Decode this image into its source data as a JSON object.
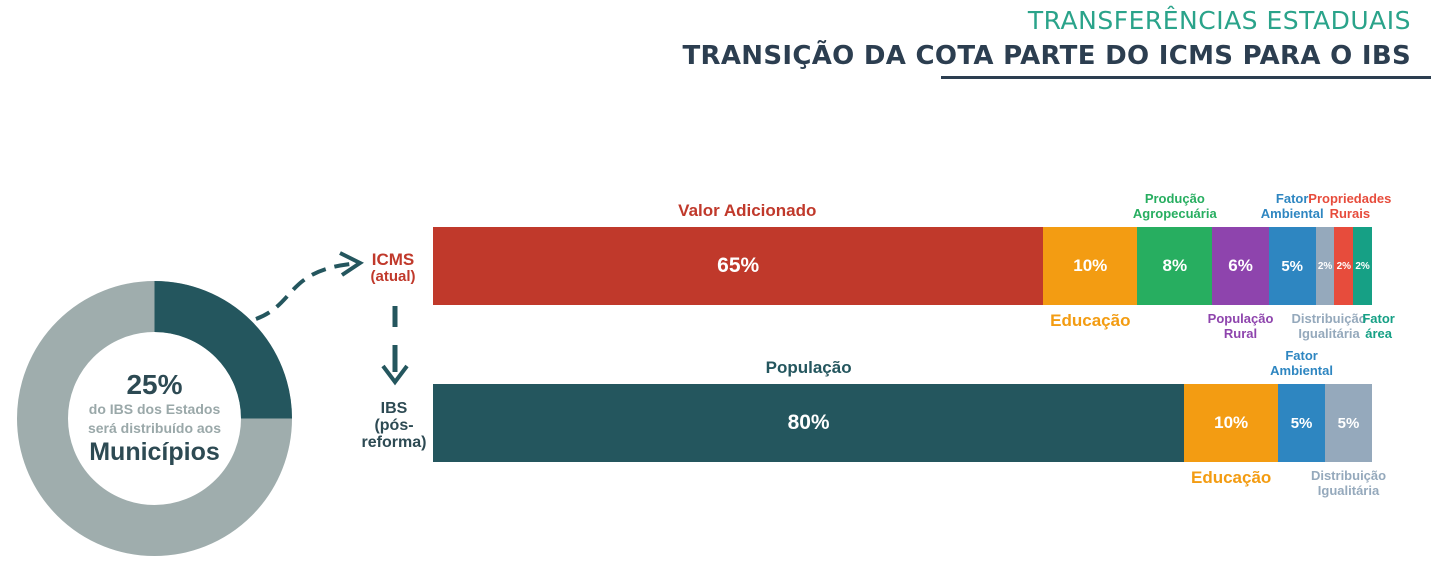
{
  "header": {
    "supertitle": "TRANSFERÊNCIAS ESTADUAIS",
    "title": "TRANSIÇÃO DA COTA PARTE DO ICMS PARA O IBS"
  },
  "donut": {
    "percent": "25%",
    "line1": "do IBS dos Estados",
    "line2": "será distribuído aos",
    "emphasis": "Municípios",
    "highlight_fraction": 0.25,
    "colors": {
      "highlight": "#24565e",
      "rest": "#9fadad"
    }
  },
  "rows": {
    "icms": {
      "line1": "ICMS",
      "line2": "(atual)"
    },
    "ibs": {
      "line1": "IBS",
      "line2": "(pós-",
      "line3": "reforma)"
    }
  },
  "chart_data": {
    "type": "bar",
    "orientation": "horizontal",
    "stacked": true,
    "categories": [
      "ICMS (atual)",
      "IBS (pós-reforma)"
    ],
    "bars": [
      {
        "category": "ICMS (atual)",
        "segments": [
          {
            "name": "Valor Adicionado",
            "value": 65,
            "label": "65%",
            "color": "#c0392b"
          },
          {
            "name": "Educação",
            "value": 10,
            "label": "10%",
            "color": "#f39c12"
          },
          {
            "name": "Produção Agropecuária",
            "value": 8,
            "label": "8%",
            "color": "#27ae60"
          },
          {
            "name": "População Rural",
            "value": 6,
            "label": "6%",
            "color": "#8e44ad"
          },
          {
            "name": "Fator Ambiental",
            "value": 5,
            "label": "5%",
            "color": "#2e86c1"
          },
          {
            "name": "Distribuição Igualitária",
            "value": 2,
            "label": "2%",
            "color": "#95a9bc"
          },
          {
            "name": "Propriedades Rurais",
            "value": 2,
            "label": "2%",
            "color": "#e74c3c"
          },
          {
            "name": "Fator área",
            "value": 2,
            "label": "2%",
            "color": "#16a085"
          }
        ]
      },
      {
        "category": "IBS (pós-reforma)",
        "segments": [
          {
            "name": "População",
            "value": 80,
            "label": "80%",
            "color": "#24565e"
          },
          {
            "name": "Educação",
            "value": 10,
            "label": "10%",
            "color": "#f39c12"
          },
          {
            "name": "Fator Ambiental",
            "value": 5,
            "label": "5%",
            "color": "#2e86c1"
          },
          {
            "name": "Distribuição Igualitária",
            "value": 5,
            "label": "5%",
            "color": "#95a9bc"
          }
        ]
      }
    ],
    "category_labels": {
      "icms": [
        {
          "text": [
            "Valor Adicionado"
          ],
          "color": "#c0392b"
        },
        {
          "text": [
            "Educação"
          ],
          "color": "#f39c12"
        },
        {
          "text": [
            "Produção",
            "Agropecuária"
          ],
          "color": "#27ae60"
        },
        {
          "text": [
            "População",
            "Rural"
          ],
          "color": "#8e44ad"
        },
        {
          "text": [
            "Fator",
            "Ambiental"
          ],
          "color": "#2e86c1"
        },
        {
          "text": [
            "Distribuição",
            "Igualitária"
          ],
          "color": "#95a9bc"
        },
        {
          "text": [
            "Propriedades",
            "Rurais"
          ],
          "color": "#e74c3c"
        },
        {
          "text": [
            "Fator",
            "área"
          ],
          "color": "#16a085"
        }
      ],
      "ibs": [
        {
          "text": [
            "População"
          ],
          "color": "#24565e"
        },
        {
          "text": [
            "Educação"
          ],
          "color": "#f39c12"
        },
        {
          "text": [
            "Fator",
            "Ambiental"
          ],
          "color": "#2e86c1"
        },
        {
          "text": [
            "Distribuição",
            "Igualitária"
          ],
          "color": "#95a9bc"
        }
      ]
    }
  }
}
